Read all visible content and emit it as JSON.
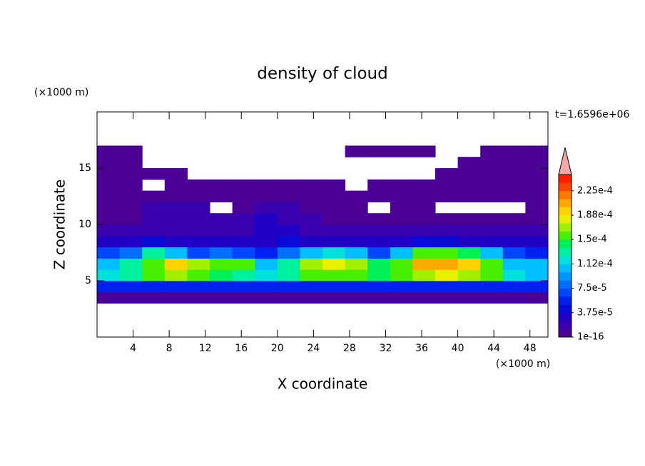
{
  "chart_data": {
    "type": "contour",
    "title": "density of cloud",
    "x_label": "X coordinate",
    "y_label": "Z coordinate",
    "x_unit": "(×1000 m)",
    "y_unit": "(×1000 m)",
    "annotation": "t=1.6596e+06",
    "xlim": [
      0,
      50
    ],
    "ylim": [
      0,
      20
    ],
    "xticks": [
      4,
      8,
      12,
      16,
      20,
      24,
      28,
      32,
      36,
      40,
      44,
      48
    ],
    "yticks": [
      5,
      10,
      15
    ],
    "x": [
      1.25,
      3.75,
      6.25,
      8.75,
      11.25,
      13.75,
      16.25,
      18.75,
      21.25,
      23.75,
      26.25,
      28.75,
      31.25,
      33.75,
      36.25,
      38.75,
      41.25,
      43.75,
      46.25,
      48.75
    ],
    "z": [
      3.5,
      4.5,
      5.5,
      6.5,
      7.5,
      8.5,
      9.5,
      10.5,
      11.5,
      12.5,
      13.5,
      14.5,
      15.5,
      16.5
    ],
    "values": [
      [
        8e-06,
        8e-06,
        8e-06,
        8e-06,
        8e-06,
        8e-06,
        8e-06,
        8e-06,
        8e-06,
        8e-06,
        8e-06,
        8e-06,
        8e-06,
        8e-06,
        8e-06,
        8e-06,
        8e-06,
        8e-06,
        8e-06,
        8e-06
      ],
      [
        5e-05,
        5e-05,
        5e-05,
        5e-05,
        5e-05,
        5e-05,
        5e-05,
        5e-05,
        5e-05,
        5e-05,
        5e-05,
        5e-05,
        5e-05,
        5e-05,
        5e-05,
        5e-05,
        5e-05,
        5e-05,
        5e-05,
        5e-05
      ],
      [
        0.00012,
        0.00013,
        0.00015,
        0.00017,
        0.00015,
        0.00014,
        0.00013,
        0.00012,
        0.00013,
        0.00015,
        0.00016,
        0.00015,
        0.00014,
        0.00015,
        0.00017,
        0.00018,
        0.00017,
        0.00015,
        0.00012,
        0.0001
      ],
      [
        0.00011,
        0.00013,
        0.00016,
        0.00019,
        0.00017,
        0.00016,
        0.00015,
        0.0001,
        0.00013,
        0.00017,
        0.00018,
        0.00017,
        0.00014,
        0.00016,
        0.0002,
        0.00021,
        0.00019,
        0.00016,
        0.0001,
        0.00011
      ],
      [
        7e-05,
        8e-05,
        0.00013,
        0.0001,
        7e-05,
        8e-05,
        7e-05,
        5e-05,
        8e-05,
        0.0001,
        0.00012,
        0.0001,
        7e-05,
        0.00011,
        0.00015,
        0.00016,
        0.00014,
        0.00011,
        7e-05,
        6e-05
      ],
      [
        3e-05,
        3e-05,
        4e-05,
        3e-05,
        3e-05,
        3e-05,
        3e-05,
        3e-05,
        4e-05,
        3e-05,
        3e-05,
        3e-05,
        3e-05,
        3e-05,
        4e-05,
        4e-05,
        3e-05,
        3e-05,
        3e-05,
        3e-05
      ],
      [
        2e-05,
        2e-05,
        2e-05,
        2e-05,
        2e-05,
        2e-05,
        2e-05,
        3e-05,
        3e-05,
        2e-05,
        2e-05,
        2e-05,
        2e-05,
        2e-05,
        2e-05,
        2e-05,
        2e-05,
        2e-05,
        2e-05,
        2e-05
      ],
      [
        1e-05,
        1.2e-05,
        1.5e-05,
        1.5e-05,
        1.8e-05,
        1.5e-05,
        1.5e-05,
        2.5e-05,
        2e-05,
        1.5e-05,
        1.2e-05,
        1e-05,
        1e-05,
        1e-05,
        1e-05,
        1e-05,
        1e-05,
        1e-05,
        1e-05,
        1e-05
      ],
      [
        5e-06,
        1e-05,
        1.5e-05,
        1.5e-05,
        1.5e-05,
        null,
        1e-05,
        1.5e-05,
        1.5e-05,
        1e-05,
        8e-06,
        5e-06,
        null,
        5e-06,
        5e-06,
        null,
        null,
        null,
        null,
        5e-06
      ],
      [
        5e-06,
        5e-06,
        1e-05,
        1.2e-05,
        1.2e-05,
        1e-05,
        8e-06,
        8e-06,
        5e-06,
        5e-06,
        5e-06,
        5e-06,
        5e-06,
        5e-06,
        5e-06,
        5e-06,
        5e-06,
        5e-06,
        5e-06,
        5e-06
      ],
      [
        5e-06,
        5e-06,
        null,
        5e-06,
        5e-06,
        5e-06,
        5e-06,
        5e-06,
        5e-06,
        5e-06,
        5e-06,
        null,
        5e-06,
        5e-06,
        5e-06,
        5e-06,
        5e-06,
        5e-06,
        5e-06,
        5e-06
      ],
      [
        5e-06,
        5e-06,
        5e-06,
        5e-06,
        null,
        null,
        null,
        null,
        null,
        null,
        null,
        null,
        null,
        null,
        null,
        5e-06,
        5e-06,
        5e-06,
        5e-06,
        5e-06
      ],
      [
        5e-06,
        5e-06,
        null,
        null,
        null,
        null,
        null,
        null,
        null,
        null,
        null,
        null,
        null,
        null,
        null,
        null,
        5e-06,
        5e-06,
        5e-06,
        5e-06
      ],
      [
        5e-06,
        5e-06,
        null,
        null,
        null,
        null,
        null,
        null,
        null,
        null,
        null,
        5e-06,
        5e-06,
        5e-06,
        5e-06,
        null,
        null,
        5e-06,
        5e-06,
        5e-06
      ]
    ],
    "levels": [
      1e-16,
      1.25e-05,
      2.5e-05,
      3.75e-05,
      5e-05,
      6.25e-05,
      7.5e-05,
      8.75e-05,
      0.0001,
      0.0001125,
      0.000125,
      0.0001375,
      0.00015,
      0.0001625,
      0.000175,
      0.0001875,
      0.0002,
      0.0002125,
      0.000225,
      0.0002375
    ],
    "colors": [
      "#4b0096",
      "#3a00b0",
      "#2000c4",
      "#0a0ad8",
      "#0020f0",
      "#0046ff",
      "#006eff",
      "#0096ff",
      "#00beff",
      "#00e0dc",
      "#00f0a0",
      "#00f05a",
      "#46f000",
      "#a0f000",
      "#e6f000",
      "#ffd200",
      "#ffaa00",
      "#ff7800",
      "#ff4600",
      "#ff1e00"
    ],
    "over_color": "#f4a8a8",
    "colorbar_ticks": [
      {
        "value": 1e-16,
        "label": "1e-16"
      },
      {
        "value": 3.75e-05,
        "label": "3.75e-5"
      },
      {
        "value": 7.5e-05,
        "label": "7.5e-5"
      },
      {
        "value": 0.0001125,
        "label": "1.12e-4"
      },
      {
        "value": 0.00015,
        "label": "1.5e-4"
      },
      {
        "value": 0.0001875,
        "label": "1.88e-4"
      },
      {
        "value": 0.000225,
        "label": "2.25e-4"
      }
    ]
  }
}
